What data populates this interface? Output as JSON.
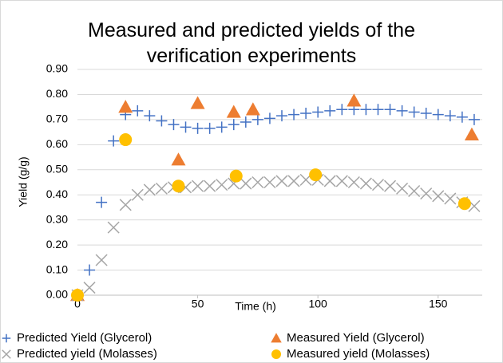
{
  "chart_data": {
    "type": "scatter",
    "title": "Measured and predicted yields of the verification experiments",
    "xlabel": "Time (h)",
    "ylabel": "Yield (g/g)",
    "xlim": [
      0,
      170
    ],
    "xticks": [
      0,
      50,
      100,
      150
    ],
    "ylim": [
      0,
      0.9
    ],
    "yticks": [
      {
        "value": 0,
        "label": "0.00"
      },
      {
        "value": 0.1,
        "label": "0.10"
      },
      {
        "value": 0.2,
        "label": "0.20"
      },
      {
        "value": 0.3,
        "label": "0.30"
      },
      {
        "value": 0.4,
        "label": "0.40"
      },
      {
        "value": 0.5,
        "label": "0.50"
      },
      {
        "value": 0.6,
        "label": "0.60"
      },
      {
        "value": 0.7,
        "label": "0.70"
      },
      {
        "value": 0.8,
        "label": "0.80"
      },
      {
        "value": 0.9,
        "label": "0.90"
      }
    ],
    "grid": true,
    "legend": "bottom",
    "series": [
      {
        "name": "Predicted Yield (Glycerol)",
        "color": "#4472c4",
        "marker": "plus",
        "x": [
          0,
          5,
          10,
          15,
          20,
          25,
          30,
          35,
          40,
          45,
          50,
          55,
          60,
          65,
          70,
          75,
          80,
          85,
          90,
          95,
          100,
          105,
          110,
          115,
          120,
          125,
          130,
          135,
          140,
          145,
          150,
          155,
          160,
          165
        ],
        "values": [
          0,
          0.1,
          0.37,
          0.615,
          0.72,
          0.735,
          0.715,
          0.695,
          0.68,
          0.67,
          0.665,
          0.665,
          0.67,
          0.68,
          0.69,
          0.7,
          0.705,
          0.715,
          0.72,
          0.725,
          0.73,
          0.735,
          0.74,
          0.74,
          0.74,
          0.74,
          0.74,
          0.735,
          0.73,
          0.725,
          0.72,
          0.715,
          0.71,
          0.7
        ]
      },
      {
        "name": "Measured Yield (Glycerol)",
        "color": "#ed7d31",
        "marker": "triangle",
        "x": [
          0,
          20,
          42,
          50,
          65,
          73,
          115,
          164
        ],
        "values": [
          0,
          0.75,
          0.54,
          0.765,
          0.73,
          0.74,
          0.775,
          0.64
        ]
      },
      {
        "name": "Predicted yield (Molasses)",
        "color": "#a5a5a5",
        "marker": "cross",
        "x": [
          0,
          5,
          10,
          15,
          20,
          25,
          30,
          35,
          40,
          45,
          50,
          55,
          60,
          65,
          70,
          75,
          80,
          85,
          90,
          95,
          100,
          105,
          110,
          115,
          120,
          125,
          130,
          135,
          140,
          145,
          150,
          155,
          160,
          165
        ],
        "values": [
          0,
          0.03,
          0.14,
          0.27,
          0.36,
          0.4,
          0.42,
          0.425,
          0.43,
          0.43,
          0.435,
          0.435,
          0.44,
          0.445,
          0.445,
          0.45,
          0.45,
          0.455,
          0.455,
          0.46,
          0.46,
          0.455,
          0.455,
          0.45,
          0.445,
          0.44,
          0.435,
          0.425,
          0.415,
          0.405,
          0.395,
          0.385,
          0.37,
          0.355
        ]
      },
      {
        "name": "Measured yield (Molasses)",
        "color": "#ffc000",
        "marker": "circle",
        "x": [
          0,
          20,
          42,
          66,
          99,
          161
        ],
        "values": [
          0,
          0.62,
          0.435,
          0.475,
          0.48,
          0.365
        ]
      }
    ]
  }
}
